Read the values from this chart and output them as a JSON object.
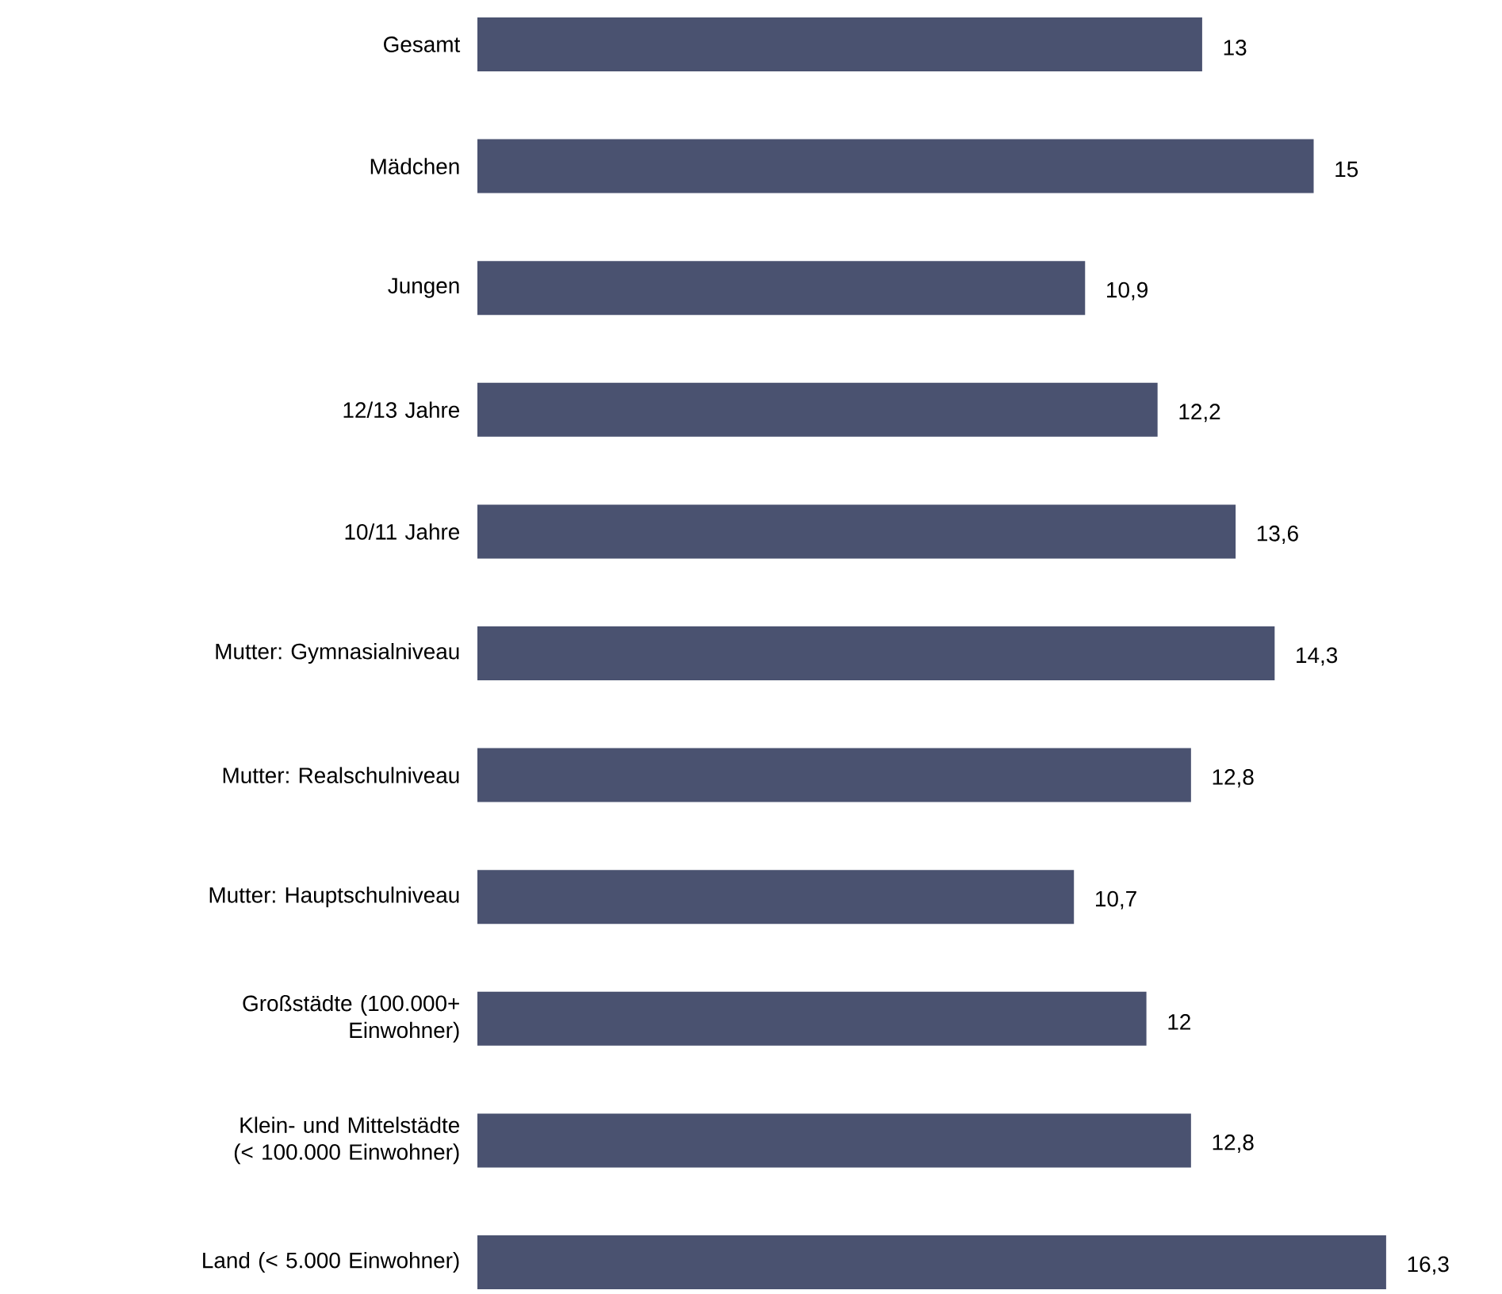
{
  "chart_data": {
    "type": "bar",
    "orientation": "horizontal",
    "categories": [
      "Gesamt",
      "Mädchen",
      "Jungen",
      "12/13 Jahre",
      "10/11 Jahre",
      "Mutter: Gymnasialniveau",
      "Mutter: Realschulniveau",
      "Mutter: Hauptschulniveau",
      "Großstädte (100.000+ Einwohner)",
      "Klein- und Mittelstädte (< 100.000 Einwohner)",
      "Land (< 5.000 Einwohner)"
    ],
    "values": [
      13,
      15,
      10.9,
      12.2,
      13.6,
      14.3,
      12.8,
      10.7,
      12,
      12.8,
      16.3
    ],
    "value_labels": [
      "13",
      "15",
      "10,9",
      "12,2",
      "13,6",
      "14,3",
      "12,8",
      "10,7",
      "12",
      "12,8",
      "16,3"
    ],
    "color": "#4a5270"
  }
}
